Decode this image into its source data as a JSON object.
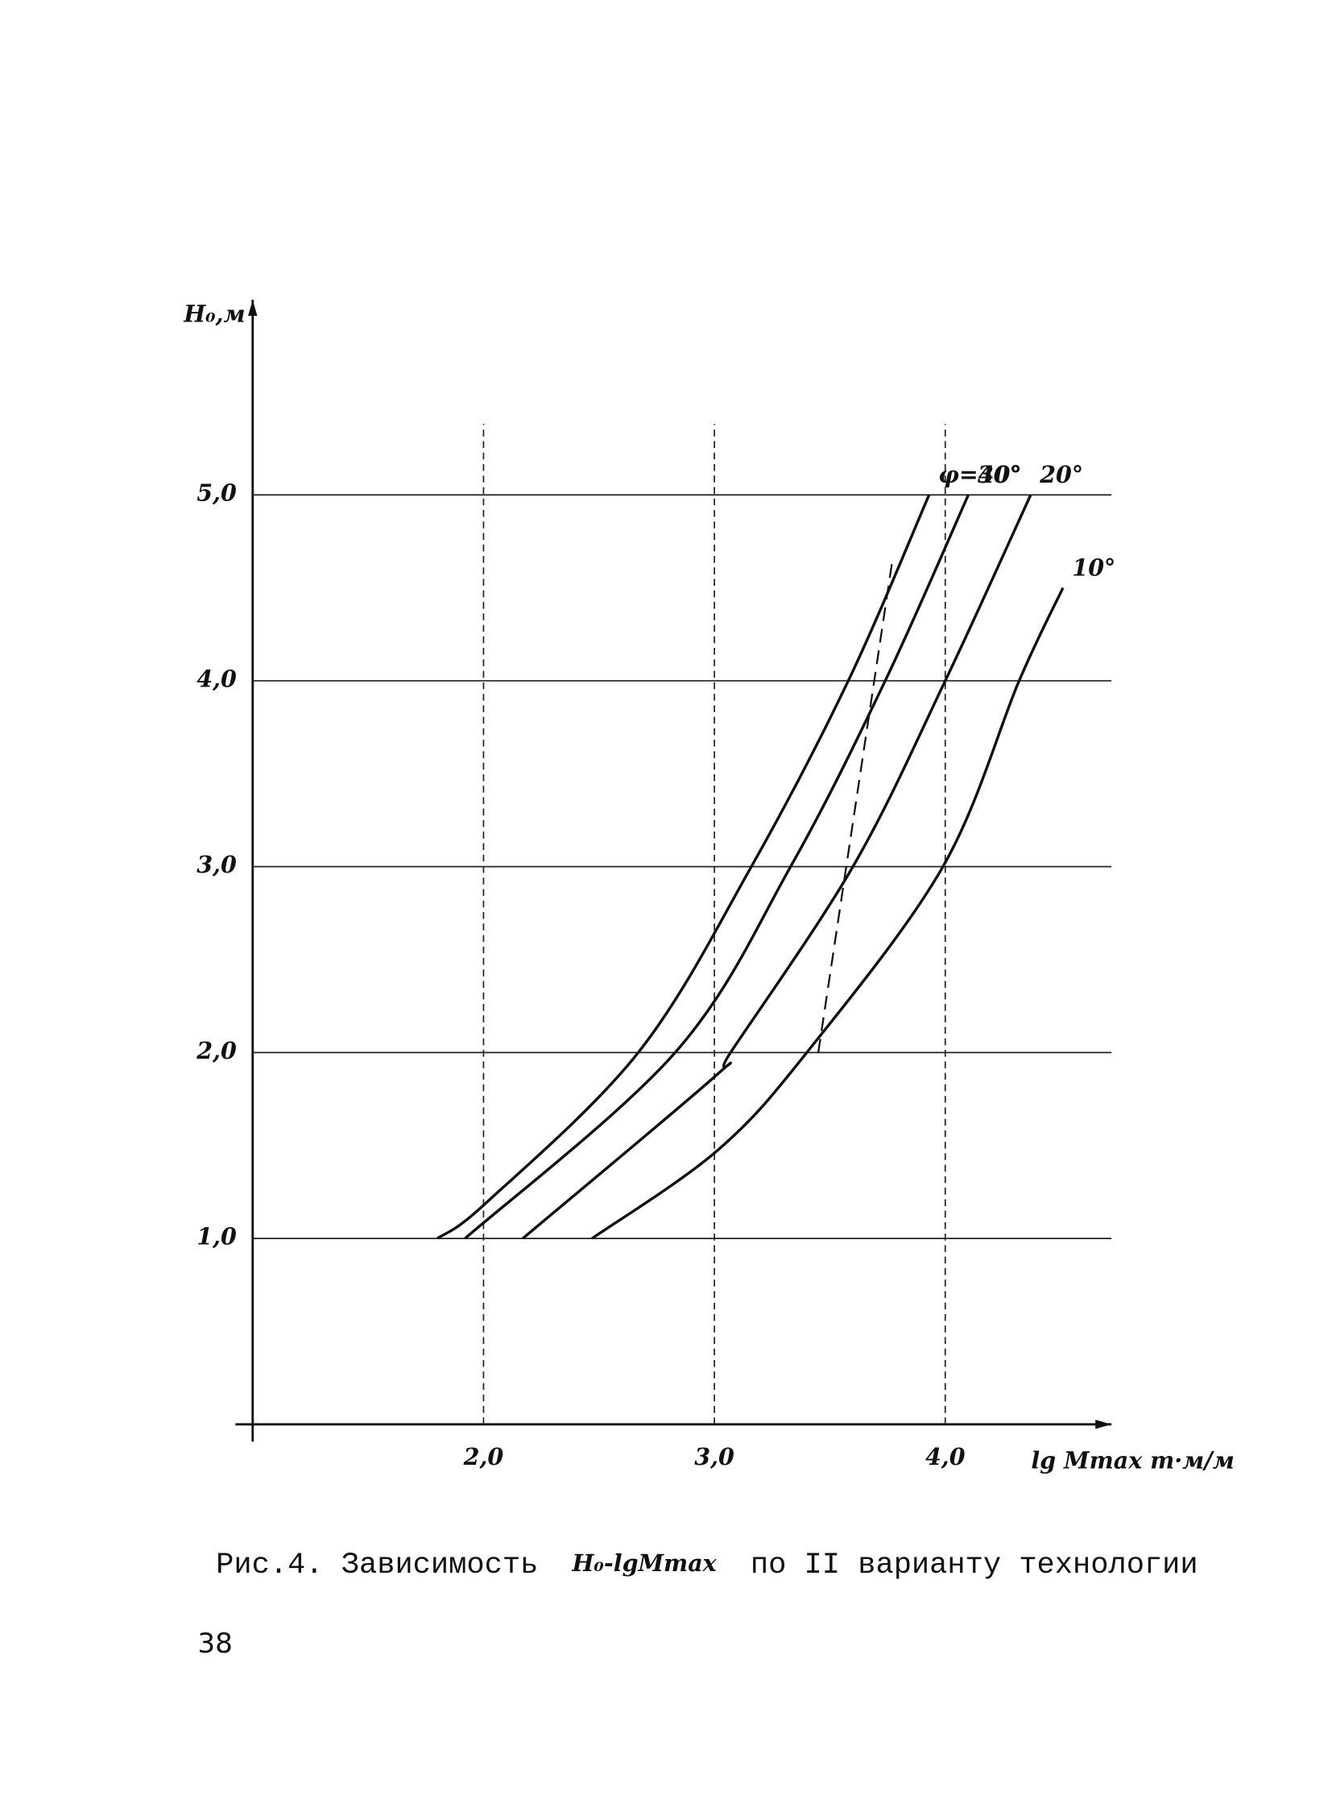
{
  "chart_data": {
    "type": "line",
    "ylabel": "H₀,м",
    "xlabel": "lg Mmax т·м/м",
    "xlim": [
      1.0,
      4.72
    ],
    "ylim": [
      0,
      6.0
    ],
    "xticks": [
      {
        "value": 2.0,
        "label": "2,0"
      },
      {
        "value": 3.0,
        "label": "3,0"
      },
      {
        "value": 4.0,
        "label": "4,0"
      }
    ],
    "yticks": [
      {
        "value": 1.0,
        "label": "1,0"
      },
      {
        "value": 2.0,
        "label": "2,0"
      },
      {
        "value": 3.0,
        "label": "3,0"
      },
      {
        "value": 4.0,
        "label": "4,0"
      },
      {
        "value": 5.0,
        "label": "5,0"
      }
    ],
    "grid": true,
    "series": [
      {
        "name": "φ=40°",
        "color": "#111111",
        "x": [
          1.8,
          2.01,
          2.67,
          3.16,
          3.58,
          3.93
        ],
        "values": [
          1.0,
          1.19,
          2.0,
          3.0,
          4.0,
          5.0
        ]
      },
      {
        "name": "30°",
        "color": "#111111",
        "x": [
          1.92,
          2.83,
          3.33,
          3.74,
          4.1
        ],
        "values": [
          1.0,
          2.0,
          3.0,
          4.0,
          5.0
        ]
      },
      {
        "name": "20°",
        "color": "#111111",
        "x": [
          2.17,
          3.01,
          3.07,
          3.6,
          4.0,
          4.37
        ],
        "values": [
          1.0,
          1.88,
          2.0,
          3.0,
          4.0,
          5.0
        ]
      },
      {
        "name": "10°",
        "color": "#111111",
        "x": [
          2.47,
          3.01,
          3.4,
          3.99,
          4.32,
          4.51
        ],
        "values": [
          1.0,
          1.47,
          2.0,
          3.0,
          4.0,
          4.5
        ]
      }
    ],
    "dashed_line": {
      "x": [
        3.45,
        3.77
      ],
      "values": [
        2.0,
        4.64
      ]
    }
  },
  "caption": {
    "prefix": "Рис.4. Зависимость",
    "formula": "H₀-lgMmax",
    "suffix": "по II варианту технологии"
  },
  "page_number": "38"
}
